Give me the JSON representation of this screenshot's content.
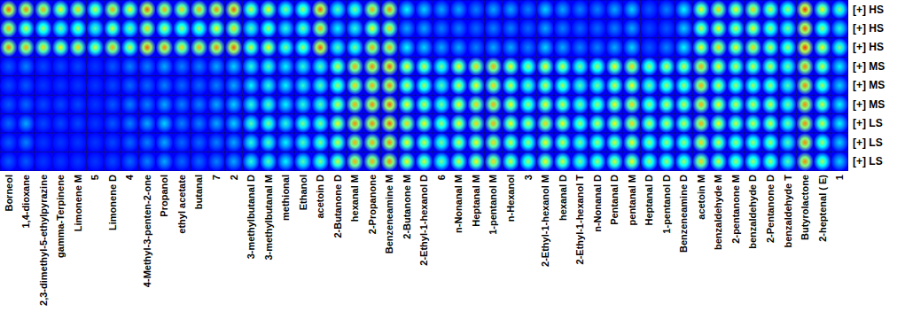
{
  "chart_data": {
    "type": "heatmap",
    "x": [
      "Borneol",
      "1,4-dioxane",
      "2,3-dimethyl-5-ethylpyrazine",
      "gamma-Terpinene",
      "Limonene M",
      "5",
      "Limonene D",
      "4",
      "4-Methyl-3-penten-2-one",
      "Propanol",
      "ethyl acetate",
      "butanal",
      "7",
      "2",
      "3-methylbutanal D",
      "3-methylbutanal M",
      "methional",
      "Ethanol",
      "acetoin D",
      "2-Butanone D",
      "hexanal M",
      "2-Propanone",
      "Benzeneamine M",
      "2-Butanone M",
      "2-Ethyl-1-hexanol D",
      "6",
      "n-Nonanal M",
      "Heptanal M",
      "1-pentanol M",
      "n-Hexanol",
      "3",
      "2-Ethyl-1-hexanol M",
      "hexanal D",
      "2-Ethyl-1-hexanol T",
      "n-Nonanal D",
      "Pentanal D",
      "pentanal M",
      "Heptanal D",
      "1-pentanol D",
      "Benzeneamine D",
      "acetoin M",
      "benzaldehyde M",
      "2-pentanone M",
      "benzaldehyde D",
      "2-Pentanone D",
      "benzaldehyde T",
      "Butyrolactone",
      "2-heptenal ( E)",
      "1"
    ],
    "y": [
      "[+] HS",
      "[+] HS",
      "[+] HS",
      "[+] MS",
      "[+] MS",
      "[+] MS",
      "[+] LS",
      "[+] LS",
      "[+] LS"
    ],
    "zlim": [
      0,
      100
    ],
    "values": [
      [
        80,
        75,
        70,
        60,
        65,
        55,
        70,
        60,
        80,
        70,
        65,
        70,
        75,
        80,
        55,
        60,
        45,
        50,
        80,
        40,
        45,
        70,
        75,
        30,
        25,
        20,
        20,
        15,
        20,
        20,
        15,
        25,
        20,
        15,
        15,
        20,
        25,
        10,
        15,
        30,
        60,
        65,
        60,
        65,
        55,
        50,
        85,
        60,
        45
      ],
      [
        70,
        55,
        50,
        45,
        50,
        40,
        55,
        45,
        65,
        55,
        50,
        50,
        60,
        65,
        40,
        50,
        35,
        45,
        70,
        30,
        35,
        60,
        65,
        20,
        20,
        15,
        15,
        12,
        15,
        15,
        12,
        20,
        15,
        12,
        12,
        15,
        20,
        8,
        10,
        25,
        55,
        60,
        55,
        60,
        50,
        45,
        80,
        50,
        35
      ],
      [
        75,
        70,
        65,
        60,
        65,
        55,
        70,
        55,
        80,
        75,
        65,
        70,
        75,
        80,
        55,
        60,
        45,
        50,
        80,
        40,
        45,
        70,
        70,
        30,
        25,
        20,
        20,
        15,
        20,
        20,
        15,
        25,
        20,
        15,
        15,
        20,
        25,
        10,
        15,
        30,
        60,
        65,
        60,
        65,
        55,
        50,
        85,
        60,
        45
      ],
      [
        10,
        15,
        8,
        8,
        8,
        6,
        10,
        15,
        15,
        20,
        15,
        15,
        20,
        25,
        35,
        40,
        30,
        35,
        40,
        55,
        70,
        75,
        80,
        60,
        55,
        45,
        60,
        65,
        70,
        60,
        50,
        60,
        55,
        45,
        50,
        60,
        65,
        50,
        55,
        55,
        70,
        60,
        55,
        55,
        55,
        45,
        75,
        55,
        30
      ],
      [
        8,
        10,
        6,
        6,
        6,
        6,
        8,
        12,
        12,
        15,
        12,
        12,
        15,
        20,
        30,
        35,
        30,
        35,
        40,
        50,
        65,
        70,
        75,
        55,
        50,
        40,
        55,
        60,
        65,
        55,
        45,
        55,
        50,
        40,
        45,
        55,
        60,
        45,
        50,
        50,
        70,
        55,
        50,
        50,
        50,
        40,
        75,
        50,
        25
      ],
      [
        10,
        12,
        8,
        8,
        8,
        6,
        10,
        15,
        15,
        20,
        15,
        15,
        20,
        25,
        35,
        40,
        30,
        35,
        40,
        55,
        70,
        75,
        80,
        60,
        55,
        45,
        60,
        65,
        70,
        60,
        50,
        60,
        55,
        45,
        50,
        60,
        65,
        50,
        55,
        55,
        70,
        60,
        55,
        55,
        55,
        45,
        75,
        55,
        30
      ],
      [
        12,
        20,
        8,
        8,
        8,
        6,
        10,
        15,
        20,
        25,
        15,
        15,
        20,
        25,
        40,
        45,
        35,
        45,
        45,
        60,
        75,
        75,
        80,
        65,
        60,
        50,
        60,
        65,
        70,
        60,
        55,
        65,
        60,
        50,
        55,
        60,
        65,
        55,
        55,
        55,
        70,
        60,
        55,
        55,
        55,
        45,
        75,
        55,
        30
      ],
      [
        10,
        15,
        6,
        6,
        6,
        6,
        8,
        12,
        15,
        20,
        12,
        12,
        15,
        20,
        35,
        40,
        30,
        40,
        45,
        55,
        70,
        70,
        75,
        60,
        55,
        45,
        55,
        60,
        65,
        55,
        50,
        60,
        55,
        45,
        50,
        55,
        60,
        50,
        50,
        50,
        65,
        55,
        50,
        50,
        50,
        40,
        75,
        50,
        25
      ],
      [
        10,
        10,
        6,
        6,
        6,
        6,
        8,
        12,
        15,
        20,
        12,
        12,
        15,
        20,
        35,
        40,
        30,
        40,
        45,
        55,
        70,
        70,
        75,
        60,
        55,
        45,
        55,
        60,
        65,
        55,
        50,
        60,
        55,
        45,
        50,
        55,
        60,
        50,
        50,
        50,
        65,
        55,
        50,
        50,
        50,
        40,
        75,
        50,
        25
      ]
    ]
  }
}
